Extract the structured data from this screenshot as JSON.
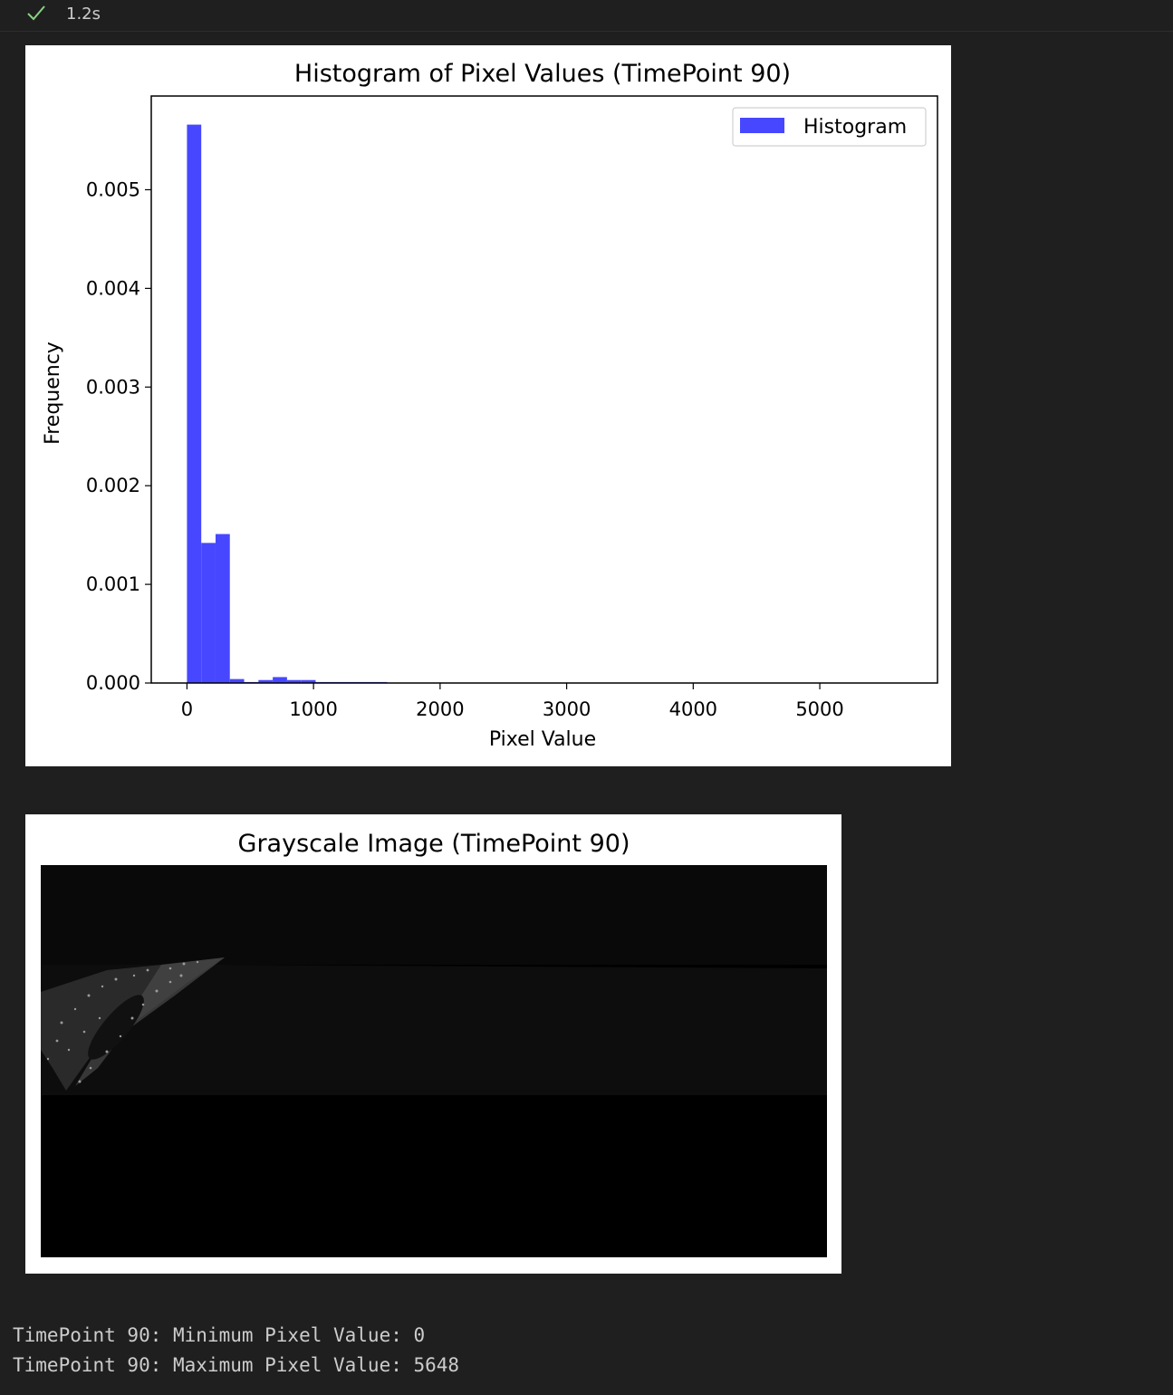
{
  "cell": {
    "status_icon": "check-icon",
    "status_color": "#89d185",
    "exec_time": "1.2s"
  },
  "chart_data": {
    "type": "bar",
    "title": "Histogram of Pixel Values (TimePoint 90)",
    "xlabel": "Pixel Value",
    "ylabel": "Frequency",
    "xlim": [
      -282,
      5930
    ],
    "ylim": [
      0,
      0.00595
    ],
    "xticks": [
      0,
      1000,
      2000,
      3000,
      4000,
      5000
    ],
    "xtick_labels": [
      "0",
      "1000",
      "2000",
      "3000",
      "4000",
      "5000"
    ],
    "yticks": [
      0,
      0.001,
      0.002,
      0.003,
      0.004,
      0.005
    ],
    "ytick_labels": [
      "0.000",
      "0.001",
      "0.002",
      "0.003",
      "0.004",
      "0.005"
    ],
    "bin_width": 112.96,
    "bin_start": 0,
    "values": [
      0.00566,
      0.00142,
      0.00151,
      4e-05,
      1e-05,
      3e-05,
      6e-05,
      3e-05,
      3e-05,
      1e-05,
      1e-05,
      1e-05,
      1e-05,
      1e-05,
      0.0,
      0.0,
      0.0,
      0.0,
      0.0,
      0.0,
      0.0,
      0.0,
      0.0,
      0.0,
      0.0,
      0.0,
      0.0,
      0.0,
      0.0,
      0.0,
      0.0,
      0.0,
      0.0,
      0.0,
      0.0,
      0.0,
      0.0,
      0.0,
      0.0,
      0.0,
      0.0,
      0.0,
      0.0,
      0.0,
      0.0,
      0.0,
      0.0,
      0.0,
      0.0,
      0.0
    ],
    "bar_color": "#4747ff",
    "legend": [
      "Histogram"
    ],
    "legend_position": "upper right",
    "grid": false
  },
  "image_figure": {
    "title": "Grayscale Image (TimePoint 90)"
  },
  "output": {
    "min_line": "TimePoint 90: Minimum Pixel Value: 0",
    "max_line": "TimePoint 90: Maximum Pixel Value: 5648"
  }
}
